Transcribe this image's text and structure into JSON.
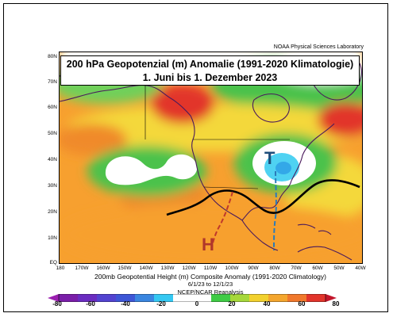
{
  "title": {
    "line1": "200 hPa Geopotenzial (m) Anomalie (1991-2020 Klimatologie)",
    "line2": "1. Juni bis 1. Dezember 2023"
  },
  "source_label": "NOAA Physical Sciences Laboratory",
  "caption": "200mb Geopotential Height (m) Composite Anomaly (1991-2020 Climatology)",
  "date_range": "6/1/23 to 12/1/23",
  "credit": "NCEP/NCAR Reanalysis",
  "lat_labels": [
    "80N",
    "70N",
    "60N",
    "50N",
    "40N",
    "30N",
    "20N",
    "10N",
    "EQ"
  ],
  "lon_labels": [
    "180",
    "170W",
    "160W",
    "150W",
    "140W",
    "130W",
    "120W",
    "110W",
    "100W",
    "90W",
    "80W",
    "70W",
    "60W",
    "50W",
    "40W"
  ],
  "colorbar_labels": [
    "-80",
    "-60",
    "-40",
    "-20",
    "0",
    "20",
    "40",
    "60",
    "80"
  ],
  "colors": {
    "strong_neg": "#9b1fb0",
    "neg": "#3d56d6",
    "weak_neg": "#35c8f2",
    "neutral": "#ffffff",
    "weak_pos": "#3fcb45",
    "pos": "#f2d12e",
    "strong_pos": "#e2342b",
    "coastline": "#4a1a5c",
    "ridge_axis": "#c0392b",
    "trough_axis": "#2b7bb9",
    "jet": "#000000"
  },
  "markers": {
    "high": "H",
    "trough": "T"
  }
}
